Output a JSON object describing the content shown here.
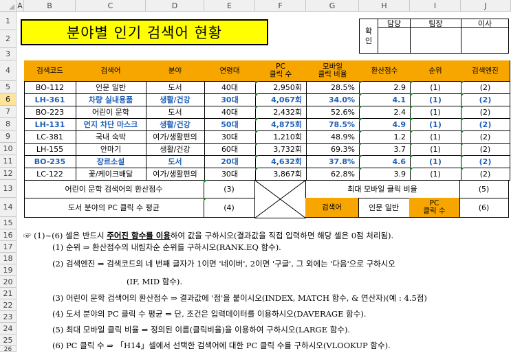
{
  "columns": [
    "A",
    "B",
    "C",
    "D",
    "E",
    "F",
    "G",
    "H",
    "I",
    "J"
  ],
  "rows": [
    "1",
    "2",
    "3",
    "4",
    "5",
    "6",
    "7",
    "8",
    "9",
    "10",
    "11",
    "12",
    "13",
    "14",
    "15",
    "16",
    "17",
    "18",
    "19",
    "20",
    "21",
    "22",
    "23",
    "24",
    "25",
    "26"
  ],
  "title": "분야별 인기 검색어 현황",
  "approval": {
    "label": "확\n인",
    "roles": [
      "담당",
      "팀장",
      "이사"
    ]
  },
  "headers": [
    "검색코드",
    "검색어",
    "분야",
    "연령대",
    "PC\n클릭 수",
    "모바일\n클릭 비율",
    "환산점수",
    "순위",
    "검색엔진"
  ],
  "table_rows": [
    {
      "code": "BO-112",
      "term": "인문 일반",
      "field": "도서",
      "age": "40대",
      "pc": "2,950회",
      "mobile": "28.5%",
      "score": "2.9",
      "rank": "(1)",
      "engine": "(2)",
      "hl": false
    },
    {
      "code": "LH-361",
      "term": "차량 실내용품",
      "field": "생활/건강",
      "age": "30대",
      "pc": "4,067회",
      "mobile": "34.0%",
      "score": "4.1",
      "rank": "(1)",
      "engine": "(2)",
      "hl": true
    },
    {
      "code": "BO-223",
      "term": "어린이 문학",
      "field": "도서",
      "age": "40대",
      "pc": "2,432회",
      "mobile": "52.6%",
      "score": "2.4",
      "rank": "(1)",
      "engine": "(2)",
      "hl": false
    },
    {
      "code": "LH-131",
      "term": "먼지 차단 마스크",
      "field": "생활/건강",
      "age": "50대",
      "pc": "4,875회",
      "mobile": "78.5%",
      "score": "4.9",
      "rank": "(1)",
      "engine": "(2)",
      "hl": true
    },
    {
      "code": "LC-381",
      "term": "국내 숙박",
      "field": "여가/생활편의",
      "age": "30대",
      "pc": "1,210회",
      "mobile": "48.9%",
      "score": "1.2",
      "rank": "(1)",
      "engine": "(2)",
      "hl": false
    },
    {
      "code": "LH-155",
      "term": "안마기",
      "field": "생활/건강",
      "age": "60대",
      "pc": "3,732회",
      "mobile": "69.3%",
      "score": "3.7",
      "rank": "(1)",
      "engine": "(2)",
      "hl": false
    },
    {
      "code": "BO-235",
      "term": "장르소설",
      "field": "도서",
      "age": "20대",
      "pc": "4,632회",
      "mobile": "37.8%",
      "score": "4.6",
      "rank": "(1)",
      "engine": "(2)",
      "hl": true
    },
    {
      "code": "LC-122",
      "term": "꽃/케이크배달",
      "field": "여가/생활편의",
      "age": "30대",
      "pc": "3,867회",
      "mobile": "62.8%",
      "score": "3.9",
      "rank": "(1)",
      "engine": "(2)",
      "hl": false
    }
  ],
  "summary": {
    "r13_label": "어린이 문학 검색어의 환산점수",
    "r13_value": "(3)",
    "r13_right_label": "최대 모바일 클릭 비율",
    "r13_right_value": "(5)",
    "r14_label": "도서 분야의 PC 클릭 수 평균",
    "r14_value": "(4)",
    "r14_h1": "검색어",
    "r14_h2": "인문 일반",
    "r14_h3": "PC\n클릭 수",
    "r14_h4": "(6)"
  },
  "notes": {
    "n16a": "☞ (1)~(6) 셀은 반드시 ",
    "n16b": "주어진 함수를 이용",
    "n16c": "하여 값을 구하시오(결과값을 직접 입력하면 해당 셀은 0점 처리됨).",
    "n17": "(1) 순위 ⇒ 환산점수의 내림차순 순위를 구하시오(RANK.EQ 함수).",
    "n18": "(2) 검색엔진 ⇒ 검색코드의 네 번째 글자가 1이면 '네이버', 2이면 '구글', 그 외에는 '다음'으로 구하시오",
    "n19": "(IF, MID 함수).",
    "n20": "(3) 어린이 문학 검색어의 환산점수 ⇒ 결과값에 '점'을 붙이시오(INDEX, MATCH 함수, & 연산자)(예 : 4.5점)",
    "n21": "(4) 도서 분야의 PC 클릭 수 평균 ⇒ 단, 조건은 입력데이터를 이용하시오(DAVERAGE 함수).",
    "n22": "(5) 최대 모바일 클릭 비율 ⇒ 정의된 이름(클릭비율)을 이용하여 구하시오(LARGE 함수).",
    "n23": "(6) PC 클릭 수 ⇒ 「H14」셀에서 선택한 검색어에 대한 PC 클릭 수를 구하시오(VLOOKUP 함수)."
  }
}
